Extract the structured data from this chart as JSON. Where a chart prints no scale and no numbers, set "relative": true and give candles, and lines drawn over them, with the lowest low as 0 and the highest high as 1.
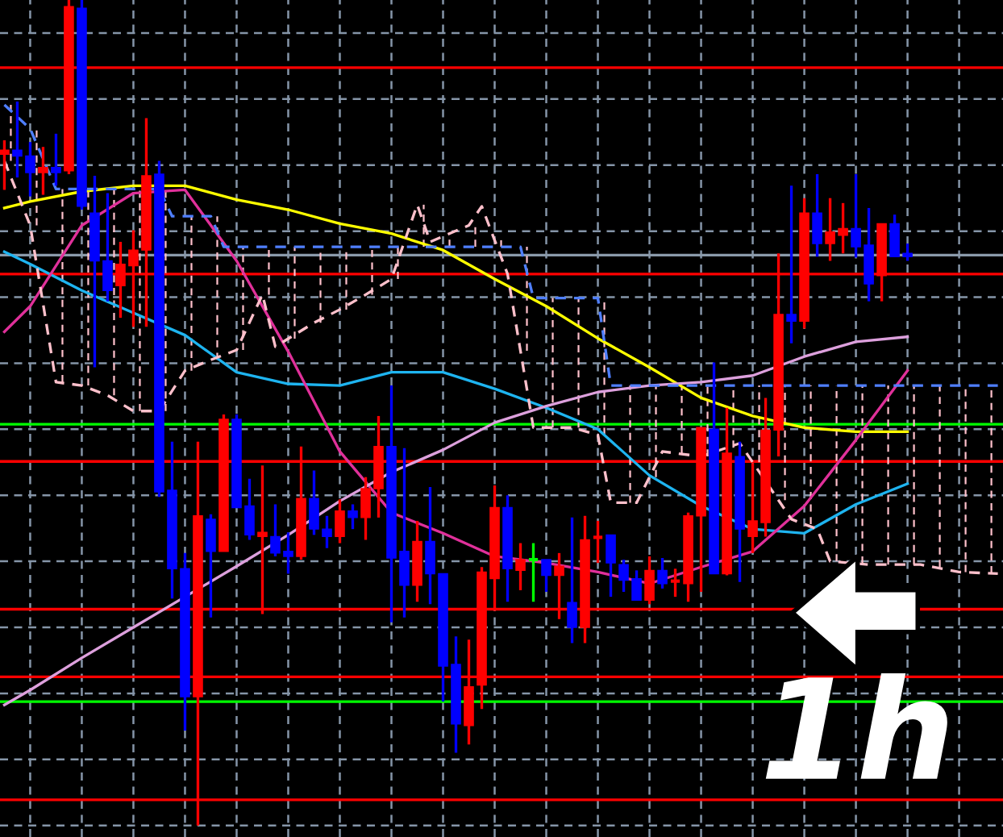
{
  "chart_data": {
    "type": "candlestick",
    "relative": true,
    "grid": true,
    "categories": [
      null,
      null,
      null,
      null,
      null,
      null,
      null,
      null,
      null,
      null,
      null,
      null,
      null,
      null,
      null,
      null,
      null,
      null,
      null,
      null,
      null,
      null,
      null,
      null,
      null,
      null,
      null,
      null,
      null,
      null,
      null,
      null,
      null,
      null,
      null,
      null,
      null,
      null,
      null,
      null,
      null,
      null,
      null,
      null,
      null,
      null,
      null,
      null,
      null,
      null,
      null,
      null,
      null,
      null,
      null,
      null,
      null,
      null,
      null,
      null,
      null,
      null,
      null,
      null,
      null,
      null,
      null,
      null,
      null,
      null,
      null,
      null,
      null,
      null,
      null,
      null,
      null,
      null
    ],
    "ohlc": [
      [
        0.813,
        0.83,
        0.77,
        0.818
      ],
      [
        0.818,
        0.877,
        0.785,
        0.811
      ],
      [
        0.811,
        0.828,
        0.762,
        0.791
      ],
      [
        0.791,
        0.822,
        0.764,
        0.797
      ],
      [
        0.797,
        0.838,
        0.775,
        0.791
      ],
      [
        0.793,
        1,
        0.789,
        0.992
      ],
      [
        0.99,
        1,
        0.746,
        0.75
      ],
      [
        0.742,
        0.787,
        0.555,
        0.684
      ],
      [
        0.684,
        0.766,
        0.635,
        0.648
      ],
      [
        0.654,
        0.707,
        0.615,
        0.68
      ],
      [
        0.678,
        0.721,
        0.604,
        0.697
      ],
      [
        0.697,
        0.857,
        0.604,
        0.787
      ],
      [
        0.789,
        0.805,
        0.398,
        0.404
      ],
      [
        0.406,
        0.465,
        0.275,
        0.311
      ],
      [
        0.311,
        0.33,
        0.115,
        0.156
      ],
      [
        0.156,
        0.465,
        0,
        0.375
      ],
      [
        0.371,
        0.377,
        0.252,
        0.332
      ],
      [
        0.332,
        0.498,
        0.332,
        0.492
      ],
      [
        0.492,
        0.498,
        0.385,
        0.385
      ],
      [
        0.387,
        0.42,
        0.346,
        0.352
      ],
      [
        0.35,
        0.436,
        0.256,
        0.355
      ],
      [
        0.35,
        0.389,
        0.326,
        0.33
      ],
      [
        0.332,
        0.355,
        0.305,
        0.326
      ],
      [
        0.326,
        0.459,
        0.322,
        0.396
      ],
      [
        0.396,
        0.43,
        0.352,
        0.359
      ],
      [
        0.359,
        0.375,
        0.336,
        0.35
      ],
      [
        0.35,
        0.395,
        0.342,
        0.381
      ],
      [
        0.381,
        0.389,
        0.359,
        0.373
      ],
      [
        0.373,
        0.422,
        0.346,
        0.408
      ],
      [
        0.408,
        0.496,
        0.373,
        0.459
      ],
      [
        0.459,
        0.533,
        0.246,
        0.324
      ],
      [
        0.332,
        0.457,
        0.252,
        0.291
      ],
      [
        0.291,
        0.369,
        0.271,
        0.344
      ],
      [
        0.344,
        0.41,
        0.268,
        0.305
      ],
      [
        0.305,
        0.305,
        0.15,
        0.193
      ],
      [
        0.195,
        0.229,
        0.088,
        0.123
      ],
      [
        0.121,
        0.225,
        0.098,
        0.168
      ],
      [
        0.17,
        0.313,
        0.141,
        0.307
      ],
      [
        0.299,
        0.412,
        0.26,
        0.385
      ],
      [
        0.385,
        0.4,
        0.271,
        0.311
      ],
      [
        0.309,
        0.342,
        0.285,
        0.322
      ],
      [
        0.322,
        0.342,
        0.271,
        0.322
      ],
      [
        0.322,
        0.322,
        0.283,
        0.303
      ],
      [
        0.303,
        0.33,
        0.25,
        0.314
      ],
      [
        0.27,
        0.373,
        0.221,
        0.24
      ],
      [
        0.24,
        0.375,
        0.221,
        0.346
      ],
      [
        0.348,
        0.369,
        0.318,
        0.35
      ],
      [
        0.352,
        0.352,
        0.277,
        0.318
      ],
      [
        0.316,
        0.322,
        0.283,
        0.297
      ],
      [
        0.299,
        0.309,
        0.273,
        0.273
      ],
      [
        0.273,
        0.326,
        0.268,
        0.309
      ],
      [
        0.309,
        0.324,
        0.287,
        0.293
      ],
      [
        0.295,
        0.311,
        0.277,
        0.297
      ],
      [
        0.293,
        0.379,
        0.271,
        0.375
      ],
      [
        0.375,
        0.482,
        0.283,
        0.482
      ],
      [
        0.48,
        0.561,
        0.305,
        0.305
      ],
      [
        0.305,
        0.506,
        0.303,
        0.451
      ],
      [
        0.447,
        0.465,
        0.295,
        0.359
      ],
      [
        0.35,
        0.439,
        0.33,
        0.369
      ],
      [
        0.367,
        0.518,
        0.35,
        0.479
      ],
      [
        0.479,
        0.693,
        0.447,
        0.619
      ],
      [
        0.619,
        0.775,
        0.584,
        0.611
      ],
      [
        0.611,
        0.76,
        0.602,
        0.742
      ],
      [
        0.742,
        0.789,
        0.689,
        0.705
      ],
      [
        0.705,
        0.76,
        0.684,
        0.719
      ],
      [
        0.715,
        0.754,
        0.693,
        0.723
      ],
      [
        0.723,
        0.789,
        0.688,
        0.701
      ],
      [
        0.703,
        0.748,
        0.635,
        0.656
      ],
      [
        0.666,
        0.729,
        0.635,
        0.729
      ],
      [
        0.729,
        0.74,
        0.689,
        0.689
      ],
      [
        0.693,
        0.705,
        0.684,
        0.689
      ],
      null,
      null,
      null,
      null,
      null,
      null,
      null
    ],
    "colors": [
      "#ff0000",
      "#0000ff",
      "#0000ff",
      "#ff0000",
      "#0000ff",
      "#ff0000",
      "#0000ff",
      "#0000ff",
      "#0000ff",
      "#ff0000",
      "#ff0000",
      "#ff0000",
      "#0000ff",
      "#0000ff",
      "#0000ff",
      "#ff0000",
      "#0000ff",
      "#ff0000",
      "#0000ff",
      "#0000ff",
      "#ff0000",
      "#0000ff",
      "#0000ff",
      "#ff0000",
      "#0000ff",
      "#0000ff",
      "#ff0000",
      "#0000ff",
      "#ff0000",
      "#ff0000",
      "#0000ff",
      "#0000ff",
      "#ff0000",
      "#0000ff",
      "#0000ff",
      "#0000ff",
      "#ff0000",
      "#ff0000",
      "#ff0000",
      "#0000ff",
      "#ff0000",
      "#00ff00",
      "#0000ff",
      "#ff0000",
      "#0000ff",
      "#ff0000",
      "#ff0000",
      "#0000ff",
      "#0000ff",
      "#0000ff",
      "#ff0000",
      "#0000ff",
      "#ff0000",
      "#ff0000",
      "#ff0000",
      "#0000ff",
      "#ff0000",
      "#0000ff",
      "#ff0000",
      "#ff0000",
      "#ff0000",
      "#0000ff",
      "#ff0000",
      "#0000ff",
      "#ff0000",
      "#ff0000",
      "#0000ff",
      "#0000ff",
      "#ff0000",
      "#0000ff",
      "#0000ff",
      null,
      null,
      null,
      null,
      null,
      null,
      null
    ],
    "series": [
      {
        "type": "line",
        "color": "#ffff00",
        "values": [
          0.748,
          null,
          0.756,
          null,
          null,
          null,
          0.768,
          null,
          null,
          null,
          0.775,
          null,
          null,
          null,
          0.775,
          null,
          null,
          null,
          0.758,
          null,
          null,
          null,
          0.746,
          null,
          null,
          null,
          0.729,
          null,
          null,
          null,
          0.717,
          null,
          null,
          null,
          0.697,
          null,
          null,
          null,
          0.662,
          null,
          null,
          null,
          0.629,
          null,
          null,
          null,
          0.59,
          null,
          null,
          null,
          0.555,
          null,
          null,
          null,
          0.518,
          null,
          null,
          null,
          0.496,
          null,
          null,
          null,
          0.482,
          null,
          null,
          null,
          0.477,
          null,
          null,
          null,
          0.477,
          null,
          null,
          null,
          null,
          null,
          null,
          null
        ]
      },
      {
        "type": "line",
        "color": "#1eb4f0",
        "values": [
          0.695,
          null,
          0.68,
          null,
          null,
          null,
          0.648,
          null,
          null,
          null,
          0.621,
          null,
          null,
          null,
          0.594,
          null,
          null,
          null,
          0.549,
          null,
          null,
          null,
          0.535,
          null,
          null,
          null,
          0.533,
          null,
          null,
          null,
          0.549,
          null,
          null,
          null,
          0.549,
          null,
          null,
          null,
          0.529,
          null,
          null,
          null,
          0.506,
          null,
          null,
          null,
          0.48,
          null,
          null,
          null,
          0.424,
          null,
          null,
          null,
          0.387,
          null,
          null,
          null,
          0.359,
          null,
          null,
          null,
          0.354,
          null,
          null,
          null,
          0.389,
          null,
          null,
          null,
          0.414,
          null,
          null,
          null,
          null,
          null,
          null,
          null
        ]
      },
      {
        "type": "line",
        "color": "#e0309a",
        "values": [
          0.598,
          null,
          0.629,
          null,
          null,
          null,
          0.727,
          null,
          null,
          null,
          0.766,
          null,
          null,
          null,
          0.77,
          null,
          null,
          null,
          0.684,
          null,
          null,
          null,
          0.574,
          null,
          null,
          null,
          0.453,
          null,
          null,
          null,
          0.379,
          null,
          null,
          null,
          0.354,
          null,
          null,
          null,
          0.326,
          null,
          null,
          null,
          0.318,
          null,
          null,
          null,
          0.307,
          null,
          null,
          null,
          0.293,
          null,
          null,
          null,
          0.313,
          null,
          null,
          null,
          0.332,
          null,
          null,
          null,
          0.387,
          null,
          null,
          null,
          0.467,
          null,
          null,
          null,
          0.551,
          null,
          null,
          null,
          null,
          null,
          null,
          null
        ]
      },
      {
        "type": "line",
        "color": "#dda0dd",
        "values": [
          0.146,
          null,
          0.164,
          null,
          null,
          null,
          0.203,
          null,
          null,
          null,
          0.24,
          null,
          null,
          null,
          0.277,
          null,
          null,
          null,
          0.314,
          null,
          null,
          null,
          0.352,
          null,
          null,
          null,
          0.393,
          null,
          null,
          null,
          0.428,
          null,
          null,
          null,
          0.455,
          null,
          null,
          null,
          0.488,
          null,
          null,
          null,
          0.508,
          null,
          null,
          null,
          0.525,
          null,
          null,
          null,
          0.533,
          null,
          null,
          null,
          0.537,
          null,
          null,
          null,
          0.545,
          null,
          null,
          null,
          0.568,
          null,
          null,
          null,
          0.586,
          null,
          null,
          null,
          0.592,
          null,
          null,
          null,
          null,
          null,
          null,
          null
        ]
      },
      {
        "type": "line",
        "line_style": "dashed",
        "color": "#4f7fff",
        "values": [
          0.873,
          null,
          0.844,
          null,
          0.771,
          null,
          null,
          null,
          null,
          null,
          null,
          null,
          0.771,
          0.738,
          null,
          null,
          0.738,
          0.701,
          null,
          null,
          null,
          null,
          null,
          null,
          null,
          null,
          null,
          null,
          null,
          null,
          null,
          null,
          null,
          null,
          null,
          null,
          null,
          null,
          null,
          null,
          0.701,
          0.639,
          null,
          null,
          null,
          null,
          0.639,
          0.533,
          null,
          null,
          null,
          null,
          null,
          null,
          null,
          null,
          null,
          null,
          null,
          null,
          null,
          null,
          null,
          null,
          null,
          null,
          null,
          null,
          null,
          null,
          null,
          null,
          null,
          null,
          null,
          null,
          null,
          0.533
        ]
      },
      {
        "type": "line",
        "line_style": "dashed",
        "color": "#ffc0cb",
        "values": [
          0.805,
          null,
          0.727,
          null,
          0.537,
          null,
          0.533,
          null,
          0.521,
          null,
          0.502,
          null,
          0.502,
          null,
          0.551,
          null,
          0.564,
          null,
          0.576,
          null,
          0.643,
          0.58,
          null,
          null,
          0.609,
          null,
          0.625,
          null,
          0.643,
          null,
          0.662,
          null,
          0.752,
          0.707,
          null,
          null,
          0.727,
          0.75,
          null,
          0.668,
          null,
          0.482,
          null,
          null,
          0.482,
          null,
          0.473,
          0.391,
          null,
          0.391,
          null,
          0.453,
          null,
          null,
          0.447,
          null,
          null,
          0.463,
          null,
          null,
          null,
          0.371,
          null,
          0.359,
          0.32,
          null,
          null,
          0.316,
          null,
          null,
          null,
          0.316,
          null,
          null,
          0.307,
          null,
          null,
          0.305
        ]
      }
    ],
    "ref_lines": [
      {
        "axis": "y",
        "value": 0.918,
        "color": "#ff0000"
      },
      {
        "axis": "y",
        "value": 0.668,
        "color": "#ff0000"
      },
      {
        "axis": "y",
        "value": 0.441,
        "color": "#ff0000"
      },
      {
        "axis": "y",
        "value": 0.262,
        "color": "#ff0000"
      },
      {
        "axis": "y",
        "value": 0.18,
        "color": "#ff0000"
      },
      {
        "axis": "y",
        "value": 0.031,
        "color": "#ff0000"
      },
      {
        "axis": "y",
        "value": 0.486,
        "color": "#00ff00"
      },
      {
        "axis": "y",
        "value": 0.15,
        "color": "#00ff00"
      },
      {
        "axis": "y",
        "value": 0.691,
        "color": "#8a9aaa"
      }
    ],
    "annotations": [
      "1h"
    ]
  }
}
